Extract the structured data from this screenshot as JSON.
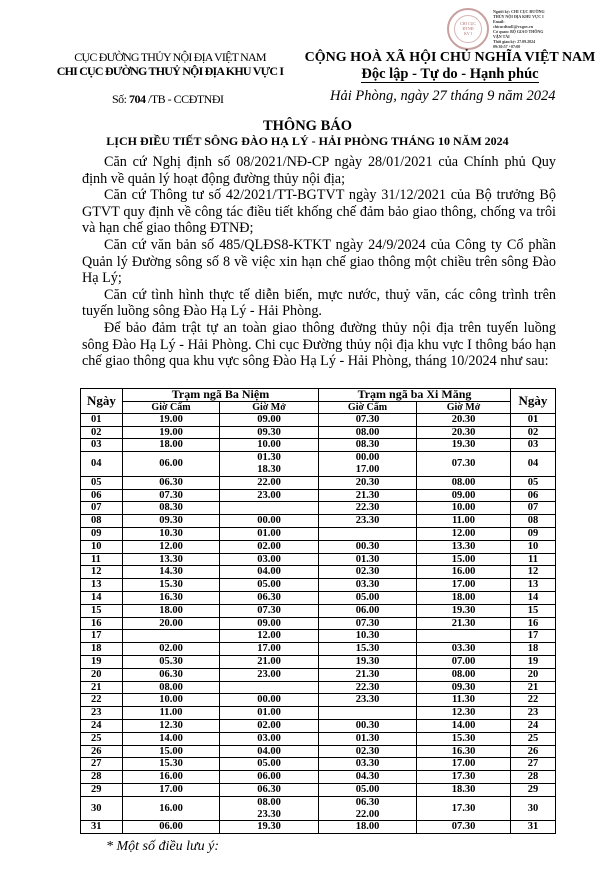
{
  "stamp": {
    "text": "CHI CỤC ĐƯỜNG THỦY NỘI ĐỊA KHU VỰC I",
    "signature_lines": [
      "Người ký: CHI CỤC ĐƯỜNG",
      "THỦY NỘI ĐỊA KHU VỰC I",
      "Email:",
      "chicucdtnd1@vr.gov.vn",
      "Cơ quan: BỘ GIAO THÔNG",
      "VẬN TẢI",
      "Thời gian ký: 27.09.2024",
      "09:30:57 +07:00"
    ]
  },
  "header": {
    "agency_parent": "CỤC ĐƯỜNG THỦY NỘI ĐỊA VIỆT NAM",
    "agency": "CHI CỤC ĐƯỜNG THUỶ NỘI ĐỊA KHU VỰC I",
    "number_prefix": "Số:",
    "number": "704",
    "number_suffix": "/TB - CCĐTNĐI",
    "country": "CỘNG HOÀ XÃ HỘI CHỦ NGHĨA VIỆT NAM",
    "motto": "Độc lập - Tự do - Hạnh phúc",
    "date": "Hải Phòng, ngày  27  tháng  9  năm 2024"
  },
  "title": "THÔNG BÁO",
  "subtitle": "LỊCH ĐIỀU TIẾT SÔNG ĐÀO HẠ LÝ - HẢI PHÒNG THÁNG 10 NĂM 2024",
  "paragraphs": [
    "Căn cứ Nghị định số 08/2021/NĐ-CP ngày 28/01/2021 của Chính phủ Quy định về quản lý hoạt động đường thủy nội địa;",
    "Căn cứ Thông tư số 42/2021/TT-BGTVT ngày 31/12/2021 của Bộ trưởng Bộ GTVT quy định về công tác điều tiết khống chế đảm bảo giao thông, chống va trôi và hạn chế giao thông ĐTNĐ;",
    "Căn cứ văn bản số 485/QLĐS8-KTKT ngày 24/9/2024 của Công ty Cổ phần Quản lý Đường sông số 8 về việc xin hạn chế giao thông một chiều trên sông Đào Hạ Lý;",
    "Căn cứ tình hình thực tế diễn biến, mực nước, thuỷ văn, các công trình trên tuyến luồng sông Đào Hạ Lý - Hải Phòng.",
    "Để bảo đảm trật tự an toàn giao thông đường thủy nội địa trên tuyến luồng sông Đào Hạ Lý - Hải Phòng. Chi cục Đường thủy nội địa khu vực I thông báo hạn chế giao thông qua khu vực sông Đào Hạ Lý - Hải Phòng, tháng 10/2024 như sau:"
  ],
  "table": {
    "col_day": "Ngày",
    "station1": "Trạm ngã Ba Niệm",
    "station2": "Trạm ngã ba Xi Măng",
    "close": "Giờ Cấm",
    "open": "Giờ Mở",
    "rows": [
      [
        "01",
        "19.00",
        "09.00",
        "07.30",
        "20.30"
      ],
      [
        "02",
        "19.00",
        "09.30",
        "08.00",
        "20.30"
      ],
      [
        "03",
        "18.00",
        "10.00",
        "08.30",
        "19.30"
      ],
      [
        "04",
        "06.00",
        "01.30\n18.30",
        "00.00\n17.00",
        "07.30"
      ],
      [
        "05",
        "06.30",
        "22.00",
        "20.30",
        "08.00"
      ],
      [
        "06",
        "07.30",
        "23.00",
        "21.30",
        "09.00"
      ],
      [
        "07",
        "08.30",
        "",
        "22.30",
        "10.00"
      ],
      [
        "08",
        "09.30",
        "00.00",
        "23.30",
        "11.00"
      ],
      [
        "09",
        "10.30",
        "01.00",
        "",
        "12.00"
      ],
      [
        "10",
        "12.00",
        "02.00",
        "00.30",
        "13.30"
      ],
      [
        "11",
        "13.30",
        "03.00",
        "01.30",
        "15.00"
      ],
      [
        "12",
        "14.30",
        "04.00",
        "02.30",
        "16.00"
      ],
      [
        "13",
        "15.30",
        "05.00",
        "03.30",
        "17.00"
      ],
      [
        "14",
        "16.30",
        "06.30",
        "05.00",
        "18.00"
      ],
      [
        "15",
        "18.00",
        "07.30",
        "06.00",
        "19.30"
      ],
      [
        "16",
        "20.00",
        "09.00",
        "07.30",
        "21.30"
      ],
      [
        "17",
        "",
        "12.00",
        "10.30",
        ""
      ],
      [
        "18",
        "02.00",
        "17.00",
        "15.30",
        "03.30"
      ],
      [
        "19",
        "05.30",
        "21.00",
        "19.30",
        "07.00"
      ],
      [
        "20",
        "06.30",
        "23.00",
        "21.30",
        "08.00"
      ],
      [
        "21",
        "08.00",
        "",
        "22.30",
        "09.30"
      ],
      [
        "22",
        "10.00",
        "00.00",
        "23.30",
        "11.30"
      ],
      [
        "23",
        "11.00",
        "01.00",
        "",
        "12.30"
      ],
      [
        "24",
        "12.30",
        "02.00",
        "00.30",
        "14.00"
      ],
      [
        "25",
        "14.00",
        "03.00",
        "01.30",
        "15.30"
      ],
      [
        "26",
        "15.00",
        "04.00",
        "02.30",
        "16.30"
      ],
      [
        "27",
        "15.30",
        "05.00",
        "03.30",
        "17.00"
      ],
      [
        "28",
        "16.00",
        "06.00",
        "04.30",
        "17.30"
      ],
      [
        "29",
        "17.00",
        "06.30",
        "05.00",
        "18.30"
      ],
      [
        "30",
        "16.00",
        "08.00\n23.30",
        "06.30\n22.00",
        "17.30"
      ],
      [
        "31",
        "06.00",
        "19.30",
        "18.00",
        "07.30"
      ]
    ]
  },
  "note": "* Một số điều lưu ý:"
}
